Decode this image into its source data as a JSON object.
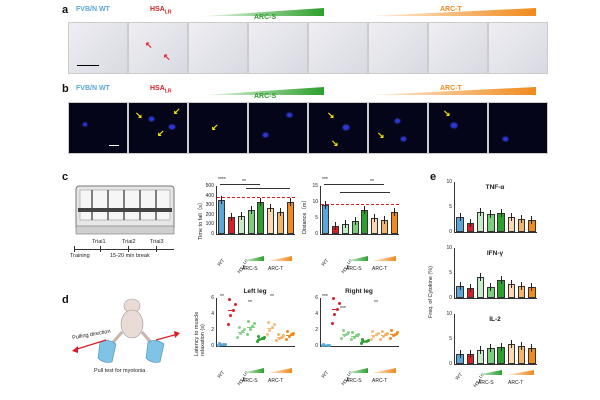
{
  "panels": {
    "a": "a",
    "b": "b",
    "c": "c",
    "d": "d",
    "e": "e"
  },
  "groups": {
    "wt": "FVB/N WT",
    "hsa": "HSA",
    "hsa_sub": "LR",
    "arcs": "ARC-S",
    "arct": "ARC-T"
  },
  "colors": {
    "wt": "#5aa6d8",
    "hsa": "#d81f26",
    "arcs": "#2ca02c",
    "arct": "#f08a1c"
  },
  "panel_c": {
    "schematic_labels": {
      "trial1": "Triai1",
      "trial2": "Triai2",
      "trial3": "Triai3",
      "training": "Training",
      "break": "15-20 min break"
    },
    "chart1_ylabel": "Time to fall（s）",
    "chart2_ylabel": "Distance（m）",
    "xlabels": {
      "wt": "WT",
      "hsa": "HSA",
      "hsa_sub": "LR",
      "arcs": "ARC-S",
      "arct": "ARC-T"
    },
    "sig": {
      "four": "****",
      "two": "**",
      "one": "*",
      "three": "***"
    }
  },
  "panel_d": {
    "arrow_label": "Pulling direction",
    "caption": "Pull test for myotonia",
    "ylabel": "Latency to muscle relaxation (s)",
    "left_title": "Left leg",
    "right_title": "Right leg"
  },
  "panel_e": {
    "ylabel": "Freq. of Cytokine (%)",
    "xlabels": {
      "wt": "WT",
      "hsa": "HSA",
      "hsa_sub": "LR",
      "arcs": "ARC-S",
      "arct": "ARC-T"
    }
  },
  "chart_data": [
    {
      "type": "bar",
      "title": "",
      "ylabel": "Time to fall（s）",
      "ylim": [
        0,
        500
      ],
      "yticks": [
        "0",
        "100",
        "200",
        "300",
        "400",
        "500"
      ],
      "categories": [
        "WT",
        "HSA-LR",
        "ARC-S 1",
        "ARC-S 2",
        "ARC-S 3",
        "ARC-T 1",
        "ARC-T 2",
        "ARC-T 3"
      ],
      "values": [
        350,
        175,
        190,
        250,
        330,
        270,
        230,
        330
      ]
    },
    {
      "type": "bar",
      "title": "",
      "ylabel": "Distance（m）",
      "ylim": [
        0,
        15
      ],
      "yticks": [
        "0",
        "5",
        "10",
        "15"
      ],
      "categories": [
        "WT",
        "HSA-LR",
        "ARC-S 1",
        "ARC-S 2",
        "ARC-S 3",
        "ARC-T 1",
        "ARC-T 2",
        "ARC-T 3"
      ],
      "values": [
        9,
        2.5,
        3,
        4,
        7.5,
        5,
        4.5,
        7
      ]
    },
    {
      "type": "scatter",
      "title": "Left leg",
      "ylabel": "Latency to muscle relaxation (s)",
      "ylim": [
        0,
        6
      ],
      "yticks": [
        "0",
        "2",
        "4",
        "6"
      ],
      "categories": [
        "WT",
        "HSA-LR",
        "ARC-S 1",
        "ARC-S 2",
        "ARC-S 3",
        "ARC-T 1",
        "ARC-T 2",
        "ARC-T 3"
      ],
      "values": [
        0.2,
        4.5,
        1.8,
        2.4,
        0.9,
        2.3,
        1.1,
        1.4
      ]
    },
    {
      "type": "scatter",
      "title": "Right leg",
      "ylabel": "",
      "ylim": [
        0,
        6
      ],
      "yticks": [
        "0",
        "2",
        "4",
        "6"
      ],
      "categories": [
        "WT",
        "HSA-LR",
        "ARC-S 1",
        "ARC-S 2",
        "ARC-S 3",
        "ARC-T 1",
        "ARC-T 2",
        "ARC-T 3"
      ],
      "values": [
        0.1,
        4.6,
        1.5,
        1.3,
        0.6,
        1.4,
        1.4,
        1.5
      ]
    },
    {
      "type": "bar",
      "title": "TNF-α",
      "ylim": [
        0,
        10
      ],
      "yticks": [
        "0",
        "5",
        "10"
      ],
      "categories": [
        "WT",
        "HSA-LR",
        "ARC-S 1",
        "ARC-S 2",
        "ARC-S 3",
        "ARC-T 1",
        "ARC-T 2",
        "ARC-T 3"
      ],
      "values": [
        3,
        1.8,
        4,
        3.6,
        3.8,
        3,
        2.6,
        2.5
      ]
    },
    {
      "type": "bar",
      "title": "IFN-γ",
      "ylim": [
        0,
        10
      ],
      "yticks": [
        "0",
        "5",
        "10"
      ],
      "categories": [
        "WT",
        "HSA-LR",
        "ARC-S 1",
        "ARC-S 2",
        "ARC-S 3",
        "ARC-T 1",
        "ARC-T 2",
        "ARC-T 3"
      ],
      "values": [
        2.5,
        2,
        4.2,
        2.2,
        3.6,
        2.8,
        2.4,
        2.3
      ]
    },
    {
      "type": "bar",
      "title": "IL-2",
      "ylim": [
        0,
        10
      ],
      "yticks": [
        "0",
        "5",
        "10"
      ],
      "categories": [
        "WT",
        "HSA-LR",
        "ARC-S 1",
        "ARC-S 2",
        "ARC-S 3",
        "ARC-T 1",
        "ARC-T 2",
        "ARC-T 3"
      ],
      "values": [
        2,
        2,
        2.8,
        3.3,
        3.4,
        4,
        3.6,
        3.3
      ]
    }
  ]
}
